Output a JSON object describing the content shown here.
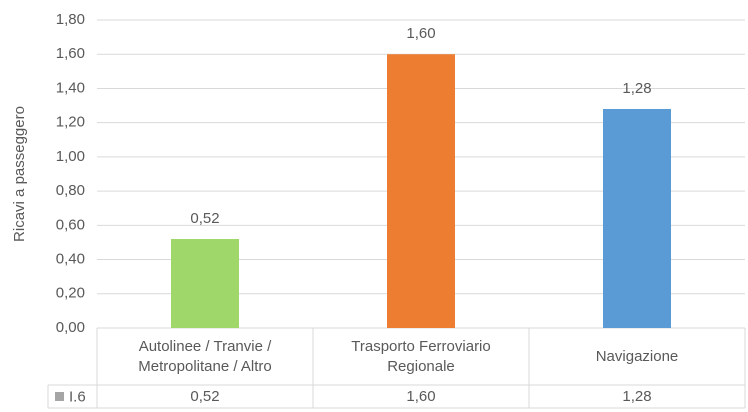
{
  "chart_data": {
    "type": "bar",
    "y_label": "Ricavi a passeggero",
    "categories": [
      "Autolinee / Tranvie / Metropolitane / Altro",
      "Trasporto Ferroviario Regionale",
      "Navigazione"
    ],
    "series": [
      {
        "name": "I.6",
        "color": "#a5a5a5",
        "bar_colors": [
          "#9fd76a",
          "#ed7d31",
          "#5b9bd5"
        ],
        "values": [
          0.52,
          1.6,
          1.28
        ],
        "value_labels": [
          "0,52",
          "1,60",
          "1,28"
        ]
      }
    ],
    "ylim": [
      0,
      1.8
    ],
    "yticks": [
      {
        "value": 0,
        "label": "0,00"
      },
      {
        "value": 0.2,
        "label": "0,20"
      },
      {
        "value": 0.4,
        "label": "0,40"
      },
      {
        "value": 0.6,
        "label": "0,60"
      },
      {
        "value": 0.8,
        "label": "0,80"
      },
      {
        "value": 1.0,
        "label": "1,00"
      },
      {
        "value": 1.2,
        "label": "1,20"
      },
      {
        "value": 1.4,
        "label": "1,40"
      },
      {
        "value": 1.6,
        "label": "1,60"
      },
      {
        "value": 1.8,
        "label": "1,80"
      }
    ],
    "grid": true,
    "data_table": true
  }
}
